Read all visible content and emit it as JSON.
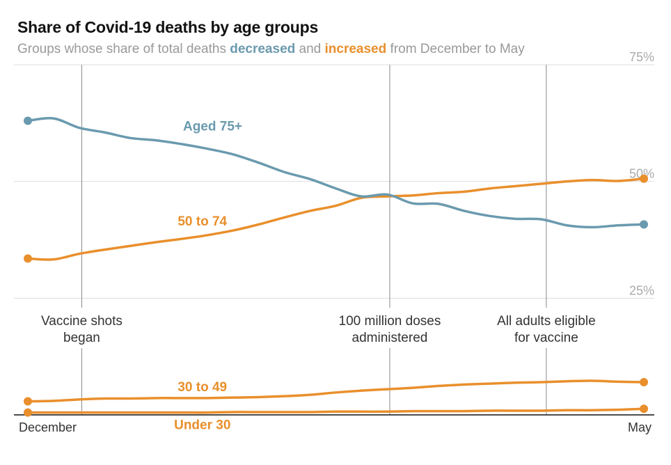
{
  "title": "Share of Covid-19 deaths by age groups",
  "subtitle": {
    "pre": "Groups whose share of total deaths ",
    "decreased": "decreased",
    "mid": " and ",
    "increased": "increased",
    "post": " from December to May"
  },
  "colors": {
    "decreased": "#6a9aae",
    "increased": "#e98f2c",
    "grid": "#dddddd",
    "annotation_line": "#888888"
  },
  "chart_data": {
    "type": "line",
    "x_labels": [
      "December",
      "May"
    ],
    "x": [
      0,
      1,
      2,
      3,
      4,
      5,
      6,
      7,
      8,
      9,
      10,
      11,
      12,
      13,
      14,
      15,
      16,
      17,
      18,
      19,
      20,
      21,
      22,
      23,
      24
    ],
    "ylim": [
      0,
      75
    ],
    "y_ticks": [
      {
        "value": 75,
        "label": "75%"
      },
      {
        "value": 50,
        "label": "50%"
      },
      {
        "value": 25,
        "label": "25%"
      }
    ],
    "grid": true,
    "annotations": [
      {
        "x": 2.1,
        "lines": [
          "Vaccine shots",
          "began"
        ]
      },
      {
        "x": 14.1,
        "lines": [
          "100 million doses",
          "administered"
        ]
      },
      {
        "x": 20.2,
        "lines": [
          "All adults eligible",
          "for vaccine"
        ]
      }
    ],
    "series": [
      {
        "name": "Aged 75+",
        "color": "#6a9aae",
        "values": [
          63.0,
          63.5,
          61.5,
          60.5,
          59.3,
          58.8,
          58.0,
          57.0,
          55.8,
          54.0,
          52.0,
          50.5,
          48.5,
          46.8,
          47.2,
          45.3,
          45.2,
          43.7,
          42.6,
          42.0,
          41.9,
          40.6,
          40.2,
          40.6,
          40.8
        ]
      },
      {
        "name": "50 to 74",
        "color": "#e98f2c",
        "values": [
          33.5,
          33.3,
          34.5,
          35.4,
          36.2,
          37.0,
          37.7,
          38.5,
          39.5,
          40.8,
          42.3,
          43.7,
          44.8,
          46.5,
          46.8,
          47.0,
          47.5,
          47.8,
          48.5,
          49.0,
          49.5,
          50.0,
          50.3,
          50.1,
          50.6
        ]
      },
      {
        "name": "30 to 49",
        "color": "#e98f2c",
        "values": [
          2.9,
          3.0,
          3.3,
          3.5,
          3.5,
          3.6,
          3.6,
          3.6,
          3.7,
          3.8,
          4.0,
          4.3,
          4.8,
          5.2,
          5.5,
          5.8,
          6.2,
          6.5,
          6.7,
          6.9,
          7.0,
          7.2,
          7.3,
          7.1,
          7.0
        ]
      },
      {
        "name": "Under 30",
        "color": "#e98f2c",
        "values": [
          0.5,
          0.5,
          0.5,
          0.5,
          0.5,
          0.5,
          0.5,
          0.5,
          0.6,
          0.6,
          0.6,
          0.6,
          0.7,
          0.7,
          0.7,
          0.8,
          0.8,
          0.8,
          0.9,
          0.9,
          0.9,
          1.0,
          1.0,
          1.1,
          1.3
        ]
      }
    ]
  }
}
